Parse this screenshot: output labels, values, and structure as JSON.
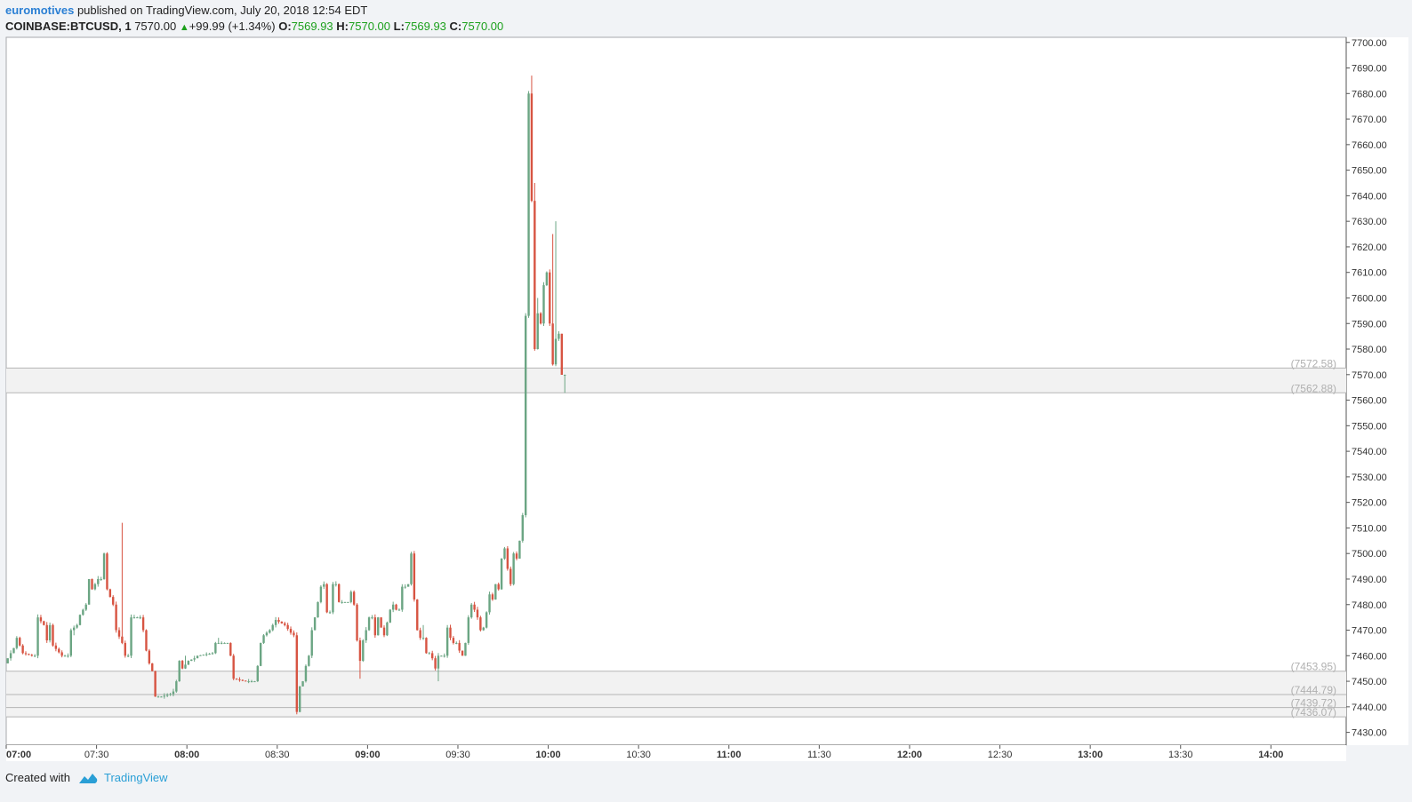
{
  "header": {
    "author": "euromotives",
    "published_text": "published on TradingView.com, July 20, 2018 12:54 EDT",
    "symbol": "COINBASE:BTCUSD, 1",
    "last": "7570.00",
    "change_icon": "up-triangle-icon",
    "change": "+99.99 (+1.34%)",
    "o_label": "O:",
    "o_value": "7569.93",
    "h_label": "H:",
    "h_value": "7570.00",
    "l_label": "L:",
    "l_value": "7569.93",
    "c_label": "C:",
    "c_value": "7570.00"
  },
  "footer": {
    "created_with": "Created with",
    "logo_icon": "tradingview-cloud-icon",
    "brand": "TradingView"
  },
  "colors": {
    "up": "#6ba583",
    "down": "#d75442",
    "text_up": "#1ca01c",
    "brand": "#2a9fd6"
  },
  "chart_data": {
    "type": "candlestick",
    "interval": "1 minute",
    "ylim": [
      7425,
      7702
    ],
    "y_ticks": [
      "7430.00",
      "7440.00",
      "7450.00",
      "7460.00",
      "7470.00",
      "7480.00",
      "7490.00",
      "7500.00",
      "7510.00",
      "7520.00",
      "7530.00",
      "7540.00",
      "7550.00",
      "7560.00",
      "7570.00",
      "7580.00",
      "7590.00",
      "7600.00",
      "7610.00",
      "7620.00",
      "7630.00",
      "7640.00",
      "7650.00",
      "7660.00",
      "7670.00",
      "7680.00",
      "7690.00",
      "7700.00"
    ],
    "x_range": [
      "07:00",
      "14:25"
    ],
    "x_ticks": [
      {
        "t": "07:00",
        "bold": true
      },
      {
        "t": "07:30",
        "bold": false
      },
      {
        "t": "08:00",
        "bold": true
      },
      {
        "t": "08:30",
        "bold": false
      },
      {
        "t": "09:00",
        "bold": true
      },
      {
        "t": "09:30",
        "bold": false
      },
      {
        "t": "10:00",
        "bold": true
      },
      {
        "t": "10:30",
        "bold": false
      },
      {
        "t": "11:00",
        "bold": true
      },
      {
        "t": "11:30",
        "bold": false
      },
      {
        "t": "12:00",
        "bold": true
      },
      {
        "t": "12:30",
        "bold": false
      },
      {
        "t": "13:00",
        "bold": true
      },
      {
        "t": "13:30",
        "bold": false
      },
      {
        "t": "14:00",
        "bold": true
      }
    ],
    "levels": [
      {
        "value": 7572.58,
        "label": "(7572.58)"
      },
      {
        "value": 7562.88,
        "label": "(7562.88)"
      },
      {
        "value": 7453.95,
        "label": "(7453.95)"
      },
      {
        "value": 7444.79,
        "label": "(7444.79)"
      },
      {
        "value": 7439.72,
        "label": "(7439.72)"
      },
      {
        "value": 7436.07,
        "label": "(7436.07)"
      }
    ],
    "bands": [
      [
        7562.88,
        7572.58
      ],
      [
        7436.07,
        7453.95
      ]
    ],
    "price_path": [
      [
        0,
        7457
      ],
      [
        3,
        7463
      ],
      [
        4,
        7467
      ],
      [
        6,
        7461
      ],
      [
        9,
        7460
      ],
      [
        10,
        7460
      ],
      [
        11,
        7475
      ],
      [
        13,
        7472
      ],
      [
        14,
        7466
      ],
      [
        15,
        7472
      ],
      [
        16,
        7464
      ],
      [
        19,
        7460
      ],
      [
        21,
        7460
      ],
      [
        22,
        7470
      ],
      [
        24,
        7472
      ],
      [
        25,
        7476
      ],
      [
        27,
        7480
      ],
      [
        28,
        7490
      ],
      [
        29,
        7486
      ],
      [
        31,
        7490
      ],
      [
        32,
        7490
      ],
      [
        33,
        7500
      ],
      [
        34,
        7486
      ],
      [
        36,
        7480
      ],
      [
        37,
        7470
      ],
      [
        39,
        7465
      ],
      [
        40,
        7460
      ],
      [
        41,
        7460
      ],
      [
        42,
        7475
      ],
      [
        44,
        7475
      ],
      [
        45,
        7475
      ],
      [
        46,
        7470
      ],
      [
        47,
        7462
      ],
      [
        48,
        7457
      ],
      [
        49,
        7454
      ],
      [
        50,
        7444
      ],
      [
        52,
        7444
      ],
      [
        55,
        7445
      ],
      [
        56,
        7446
      ],
      [
        57,
        7450
      ],
      [
        58,
        7458
      ],
      [
        59,
        7455
      ],
      [
        61,
        7458
      ],
      [
        63,
        7459
      ],
      [
        64,
        7460
      ],
      [
        69,
        7461
      ],
      [
        70,
        7465
      ],
      [
        72,
        7465
      ],
      [
        74,
        7465
      ],
      [
        75,
        7460
      ],
      [
        76,
        7451
      ],
      [
        80,
        7450
      ],
      [
        83,
        7450
      ],
      [
        84,
        7456
      ],
      [
        85,
        7465
      ],
      [
        86,
        7468
      ],
      [
        88,
        7470
      ],
      [
        90,
        7474
      ],
      [
        93,
        7472
      ],
      [
        95,
        7469
      ],
      [
        96,
        7468
      ],
      [
        97,
        7438
      ],
      [
        98,
        7448
      ],
      [
        99,
        7450
      ],
      [
        100,
        7456
      ],
      [
        101,
        7460
      ],
      [
        102,
        7470
      ],
      [
        103,
        7475
      ],
      [
        104,
        7481
      ],
      [
        105,
        7487
      ],
      [
        106,
        7488
      ],
      [
        106.5,
        7488
      ],
      [
        107,
        7477
      ],
      [
        108,
        7477
      ],
      [
        109,
        7488
      ],
      [
        110,
        7488
      ],
      [
        111,
        7481
      ],
      [
        114,
        7481
      ],
      [
        115,
        7485
      ],
      [
        116,
        7480
      ],
      [
        116.5,
        7475
      ],
      [
        117,
        7466
      ],
      [
        117.5,
        7452
      ],
      [
        118,
        7458
      ],
      [
        119,
        7466
      ],
      [
        120,
        7470
      ],
      [
        121,
        7475
      ],
      [
        122,
        7475
      ],
      [
        122.5,
        7470
      ],
      [
        123,
        7468
      ],
      [
        124,
        7475
      ],
      [
        125,
        7471
      ],
      [
        126,
        7468
      ],
      [
        127,
        7473
      ],
      [
        128,
        7478
      ],
      [
        129,
        7480
      ],
      [
        130,
        7478
      ],
      [
        131,
        7478
      ],
      [
        132,
        7487
      ],
      [
        133,
        7487
      ],
      [
        134,
        7488
      ],
      [
        135,
        7500
      ],
      [
        135.5,
        7490
      ],
      [
        136,
        7482
      ],
      [
        137,
        7470
      ],
      [
        138,
        7467
      ],
      [
        139,
        7467
      ],
      [
        140,
        7461
      ],
      [
        141,
        7461
      ],
      [
        142,
        7459
      ],
      [
        143,
        7455
      ],
      [
        144,
        7460
      ],
      [
        145,
        7460
      ],
      [
        146,
        7460
      ],
      [
        147,
        7471
      ],
      [
        148,
        7467
      ],
      [
        149,
        7465
      ],
      [
        150,
        7465
      ],
      [
        151,
        7462
      ],
      [
        152,
        7460
      ],
      [
        153,
        7465
      ],
      [
        154,
        7475
      ],
      [
        155,
        7480
      ],
      [
        156,
        7478
      ],
      [
        157,
        7475
      ],
      [
        158,
        7470
      ],
      [
        159,
        7471
      ],
      [
        160,
        7477
      ],
      [
        161,
        7484
      ],
      [
        162,
        7482
      ],
      [
        163,
        7488
      ],
      [
        164,
        7486
      ],
      [
        165,
        7498
      ],
      [
        166,
        7502
      ],
      [
        167,
        7494
      ],
      [
        168,
        7488
      ],
      [
        169,
        7500
      ],
      [
        170,
        7498
      ],
      [
        171,
        7505
      ],
      [
        172,
        7515
      ],
      [
        173,
        7593
      ],
      [
        174,
        7680
      ],
      [
        175,
        7638
      ],
      [
        176,
        7580
      ],
      [
        177,
        7594
      ],
      [
        178,
        7590
      ],
      [
        179,
        7605
      ],
      [
        180,
        7610
      ],
      [
        181,
        7590
      ],
      [
        182,
        7574
      ],
      [
        183,
        7584
      ],
      [
        184,
        7586
      ],
      [
        185,
        7569.93
      ]
    ]
  }
}
